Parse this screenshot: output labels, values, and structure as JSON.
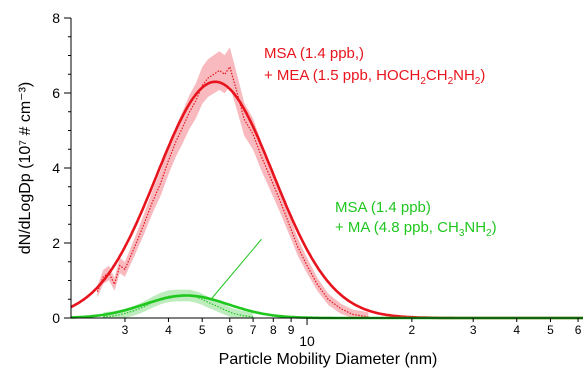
{
  "chart_data": {
    "type": "line",
    "title": "",
    "xlabel": "Particle Mobility Diameter (nm)",
    "ylabel": "dN/dLogDp (10⁷ # cm⁻³)",
    "x_scale": "log",
    "xlim": [
      2.1,
      62
    ],
    "ylim": [
      0,
      8
    ],
    "y_ticks": [
      0,
      2,
      4,
      6,
      8
    ],
    "x_ticks_minor_labeled": [
      3,
      4,
      5,
      6,
      7,
      8,
      9,
      20,
      30,
      40,
      50,
      60
    ],
    "x_ticks_major_labeled": [
      10
    ],
    "x_tick_display": [
      "3",
      "4",
      "5",
      "6",
      "7",
      "8",
      "9",
      "10",
      "2",
      "3",
      "4",
      "5",
      "6"
    ],
    "grid": false,
    "series": [
      {
        "key": "mea",
        "color": "#e8141d",
        "band_color": "#f5a3a8",
        "measured": {
          "x": [
            2.5,
            2.6,
            2.7,
            2.8,
            2.9,
            3.0,
            3.2,
            3.4,
            3.6,
            3.8,
            4.0,
            4.2,
            4.4,
            4.6,
            4.8,
            5.0,
            5.2,
            5.4,
            5.6,
            5.8,
            6.0,
            6.3,
            6.6,
            7.0,
            7.4,
            7.8,
            8.3,
            8.8,
            9.4,
            10.0,
            10.7,
            11.5,
            12.5,
            13.5,
            15.0
          ],
          "y": [
            0.7,
            1.1,
            1.2,
            0.9,
            1.4,
            1.3,
            1.9,
            2.5,
            3.1,
            3.6,
            4.2,
            4.7,
            5.1,
            5.5,
            5.8,
            6.2,
            6.4,
            6.5,
            6.6,
            6.5,
            6.7,
            6.0,
            5.3,
            4.9,
            4.3,
            3.8,
            3.2,
            2.6,
            1.9,
            1.4,
            0.9,
            0.5,
            0.25,
            0.1,
            0.03
          ]
        },
        "fit": {
          "peak_x": 5.45,
          "peak_y": 6.3,
          "sigma_g": 1.47
        }
      },
      {
        "key": "ma",
        "color": "#1fc71f",
        "band_color": "#a8e6a8",
        "measured": {
          "x": [
            2.6,
            2.8,
            3.0,
            3.2,
            3.4,
            3.6,
            3.8,
            4.0,
            4.2,
            4.4,
            4.6,
            4.8,
            5.0,
            5.2,
            5.5,
            5.8,
            6.1,
            6.5,
            7.0
          ],
          "y": [
            0.03,
            0.06,
            0.12,
            0.2,
            0.3,
            0.42,
            0.52,
            0.58,
            0.6,
            0.6,
            0.6,
            0.56,
            0.5,
            0.42,
            0.32,
            0.22,
            0.13,
            0.07,
            0.03
          ]
        },
        "fit": {
          "peak_x": 4.5,
          "peak_y": 0.6,
          "sigma_g": 1.32
        }
      }
    ],
    "annotations": [
      {
        "key": "mea",
        "line1": "MSA (1.4 ppb,)",
        "line2_parts": [
          "+ MEA (1.5 ppb, HOCH",
          "2",
          "CH",
          "2",
          "NH",
          "2",
          ")"
        ]
      },
      {
        "key": "ma",
        "line1": "MSA (1.4 ppb)",
        "line2_parts": [
          "+ MA (4.8 ppb, CH",
          "3",
          "NH",
          "2",
          ")"
        ],
        "pointer_from_x": 7.4,
        "pointer_from_y": 2.1,
        "pointer_to_x": 5.3,
        "pointer_to_y": 0.5
      }
    ]
  }
}
